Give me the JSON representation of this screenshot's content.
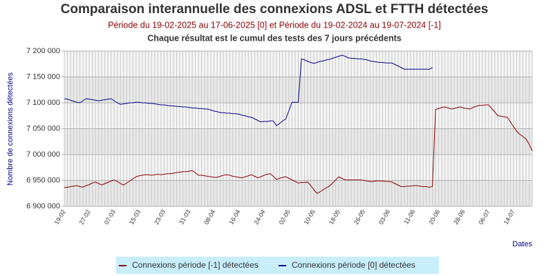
{
  "chart_data": {
    "type": "line",
    "title": "Comparaison interannuelle des connexions ADSL et FTTH détectées",
    "subtitle": "Période du 19-02-2025 au 17-06-2025 [0] et Période du 19-02-2024 au 19-07-2024 [-1]",
    "note": "Chaque résultat est le cumul des tests des 7 jours précédents",
    "y_label": "Nombre de connexions détectées",
    "x_label": "Dates",
    "ylim": [
      6900000,
      7200000
    ],
    "yticks": [
      {
        "value": 6900000,
        "label": "6 900 000"
      },
      {
        "value": 6950000,
        "label": "6 950 000"
      },
      {
        "value": 7000000,
        "label": "7 000 000"
      },
      {
        "value": 7050000,
        "label": "7 050 000"
      },
      {
        "value": 7100000,
        "label": "7 100 000"
      },
      {
        "value": 7150000,
        "label": "7 150 000"
      },
      {
        "value": 7200000,
        "label": "7 200 000"
      }
    ],
    "grid": true,
    "categories": [
      "19-02",
      null,
      null,
      null,
      null,
      null,
      null,
      null,
      "27-02",
      null,
      null,
      null,
      null,
      null,
      null,
      null,
      "07-03",
      null,
      null,
      null,
      null,
      null,
      null,
      null,
      "15-03",
      null,
      null,
      null,
      null,
      null,
      null,
      null,
      "23-03",
      null,
      null,
      null,
      null,
      null,
      null,
      null,
      "31-03",
      null,
      null,
      null,
      null,
      null,
      null,
      null,
      "08-04",
      null,
      null,
      null,
      null,
      null,
      null,
      null,
      "16-04",
      null,
      null,
      null,
      null,
      null,
      null,
      null,
      "24-04",
      null,
      null,
      null,
      null,
      null,
      null,
      null,
      "02-05",
      null,
      null,
      null,
      null,
      null,
      null,
      null,
      "10-05",
      null,
      null,
      null,
      null,
      null,
      null,
      null,
      "18-05",
      null,
      null,
      null,
      null,
      null,
      null,
      null,
      "26-05",
      null,
      null,
      null,
      null,
      null,
      null,
      null,
      "03-06",
      null,
      null,
      null,
      null,
      null,
      null,
      null,
      "11-06",
      null,
      null,
      null,
      null,
      null,
      null,
      null,
      "20-06",
      null,
      null,
      null,
      null,
      null,
      null,
      null,
      "28-06",
      null,
      null,
      null,
      null,
      null,
      null,
      null,
      "06-07",
      null,
      null,
      null,
      null,
      null,
      null,
      null,
      "14-07",
      null,
      null,
      null,
      null,
      null,
      null
    ],
    "series": [
      {
        "name": "Connexions période [-1] détectées",
        "color": "#8b0000",
        "values": [
          6936000,
          6937000,
          6938000,
          6939000,
          6940000,
          6938000,
          6937000,
          6940000,
          6942000,
          6945000,
          6947000,
          6944000,
          6941000,
          6944000,
          6946000,
          6949000,
          6951000,
          6948000,
          6944000,
          6941000,
          6945000,
          6949000,
          6953000,
          6957000,
          6959000,
          6960000,
          6961000,
          6961000,
          6960000,
          6961000,
          6962000,
          6961000,
          6962000,
          6963000,
          6963000,
          6964000,
          6965000,
          6966000,
          6967000,
          6967000,
          6968000,
          6969000,
          6965000,
          6960000,
          6960000,
          6959000,
          6958000,
          6957000,
          6956000,
          6956000,
          6958000,
          6960000,
          6961000,
          6960000,
          6958000,
          6957000,
          6956000,
          6955000,
          6957000,
          6959000,
          6961000,
          6958000,
          6955000,
          6957000,
          6960000,
          6962000,
          6963000,
          6958000,
          6952000,
          6954000,
          6956000,
          6957000,
          6954000,
          6951000,
          6948000,
          6945000,
          6946000,
          6946000,
          6947000,
          6940000,
          6932000,
          6925000,
          6928000,
          6932000,
          6936000,
          6939000,
          6945000,
          6951000,
          6957000,
          6954000,
          6951000,
          6951000,
          6951000,
          6951000,
          6951000,
          6951000,
          6950000,
          6949000,
          6948000,
          6948000,
          6949000,
          6949000,
          6949000,
          6948000,
          6948000,
          6947000,
          6944000,
          6941000,
          6938000,
          6938000,
          6939000,
          6939000,
          6940000,
          6940000,
          6939000,
          6938000,
          6938000,
          6937000,
          6938000,
          7087000,
          7089000,
          7091000,
          7092000,
          7090000,
          7088000,
          7089000,
          7091000,
          7092000,
          7090000,
          7089000,
          7088000,
          7091000,
          7093000,
          7095000,
          7095000,
          7096000,
          7096000,
          7089000,
          7082000,
          7075000,
          7074000,
          7073000,
          7072000,
          7063000,
          7054000,
          7045000,
          7039000,
          7035000,
          7030000,
          7020000,
          7007000
        ]
      },
      {
        "name": "Connexions période [0] détectées",
        "color": "#00008b",
        "values": [
          7108000,
          7107000,
          7105000,
          7103000,
          7101000,
          7100000,
          7104000,
          7108000,
          7107000,
          7106000,
          7105000,
          7104000,
          7105000,
          7106000,
          7107000,
          7108000,
          7104000,
          7100000,
          7097000,
          7098000,
          7099000,
          7100000,
          7100000,
          7101000,
          7101000,
          7100000,
          7100000,
          7099000,
          7099000,
          7098000,
          7097000,
          7096000,
          7096000,
          7095000,
          7094000,
          7094000,
          7093000,
          7093000,
          7092000,
          7092000,
          7091000,
          7090000,
          7090000,
          7089000,
          7089000,
          7088000,
          7088000,
          7086000,
          7084000,
          7083000,
          7081000,
          7081000,
          7080000,
          7080000,
          7079000,
          7079000,
          7078000,
          7076000,
          7075000,
          7073000,
          7072000,
          7069000,
          7066000,
          7063000,
          7064000,
          7064000,
          7065000,
          7065000,
          7056000,
          7060000,
          7065000,
          7069000,
          7085000,
          7101000,
          7101000,
          7101000,
          7185000,
          7183000,
          7180000,
          7178000,
          7176000,
          7178000,
          7180000,
          7181000,
          7183000,
          7184000,
          7186000,
          7188000,
          7190000,
          7192000,
          7190000,
          7187000,
          7186000,
          7186000,
          7185000,
          7185000,
          7184000,
          7183000,
          7181000,
          7180000,
          7179000,
          7178000,
          7178000,
          7177000,
          7177000,
          7177000,
          7174000,
          7171000,
          7168000,
          7165000,
          7165000,
          7165000,
          7165000,
          7165000,
          7165000,
          7165000,
          7165000,
          7165000,
          7168000,
          null,
          null,
          null,
          null,
          null,
          null,
          null,
          null,
          null,
          null,
          null,
          null,
          null,
          null,
          null,
          null,
          null,
          null,
          null,
          null,
          null,
          null,
          null,
          null,
          null,
          null,
          null,
          null,
          null,
          null,
          null,
          null
        ]
      }
    ]
  }
}
